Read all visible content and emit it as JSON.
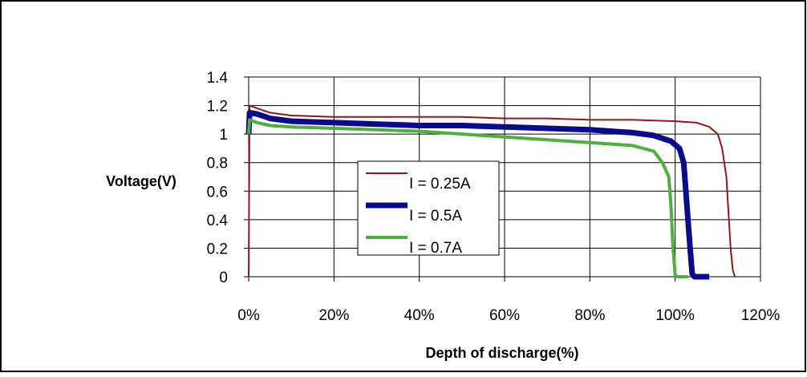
{
  "chart_data": {
    "type": "line",
    "xlabel": "Depth of discharge(%)",
    "ylabel": "Voltage(V)",
    "xlim": [
      0,
      1.2
    ],
    "ylim": [
      0,
      1.4
    ],
    "x_ticks": [
      "0%",
      "20%",
      "40%",
      "60%",
      "80%",
      "100%",
      "120%"
    ],
    "y_ticks": [
      "0",
      "0.2",
      "0.4",
      "0.6",
      "0.8",
      "1",
      "1.2",
      "1.4"
    ],
    "grid": "horizontal",
    "legend_position": "center-left",
    "series": [
      {
        "name": "I = 0.25A",
        "color": "#8b1a1a",
        "x": [
          0,
          0.002,
          0.02,
          0.05,
          0.1,
          0.2,
          0.3,
          0.4,
          0.5,
          0.6,
          0.7,
          0.8,
          0.9,
          1.0,
          1.05,
          1.08,
          1.1,
          1.11,
          1.12,
          1.125,
          1.13,
          1.135,
          1.14
        ],
        "y": [
          0,
          1.2,
          1.18,
          1.15,
          1.13,
          1.12,
          1.12,
          1.12,
          1.12,
          1.11,
          1.11,
          1.1,
          1.1,
          1.09,
          1.08,
          1.05,
          1.0,
          0.9,
          0.7,
          0.45,
          0.2,
          0.05,
          0
        ]
      },
      {
        "name": "I = 0.5A",
        "color": "#0a0a8c",
        "x": [
          0,
          0.002,
          0.02,
          0.05,
          0.1,
          0.2,
          0.3,
          0.4,
          0.5,
          0.6,
          0.7,
          0.8,
          0.9,
          0.95,
          0.99,
          1.01,
          1.02,
          1.025,
          1.03,
          1.035,
          1.04,
          1.045,
          1.08
        ],
        "y": [
          1.0,
          1.15,
          1.14,
          1.11,
          1.09,
          1.08,
          1.07,
          1.06,
          1.06,
          1.05,
          1.04,
          1.03,
          1.01,
          0.99,
          0.95,
          0.9,
          0.8,
          0.6,
          0.4,
          0.2,
          0.02,
          0,
          0
        ]
      },
      {
        "name": "I = 0.7A",
        "color": "#4caf3f",
        "x": [
          0,
          0.002,
          0.02,
          0.05,
          0.1,
          0.2,
          0.3,
          0.4,
          0.5,
          0.6,
          0.7,
          0.8,
          0.9,
          0.95,
          0.97,
          0.985,
          0.99,
          0.995,
          1.0,
          1.005,
          1.01,
          1.03
        ],
        "y": [
          1.0,
          1.1,
          1.08,
          1.06,
          1.05,
          1.04,
          1.03,
          1.02,
          1.0,
          0.98,
          0.96,
          0.94,
          0.92,
          0.88,
          0.8,
          0.7,
          0.5,
          0.2,
          0.01,
          0,
          0,
          0
        ]
      }
    ]
  }
}
